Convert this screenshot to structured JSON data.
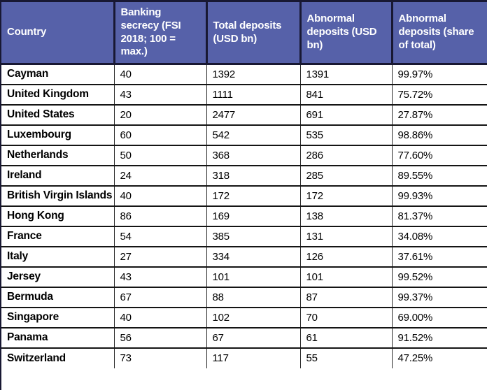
{
  "page": {
    "description": "Offshore banking deposits data table",
    "colors": {
      "header_bg": "#5661a9",
      "header_text": "#ffffff",
      "body_bg": "#ffffff",
      "body_text": "#000000",
      "grid_border": "#181833"
    }
  },
  "chart_data": {
    "type": "table",
    "column_keys": [
      "country",
      "banking-secrecy",
      "total-deposits",
      "abnormal-deposits",
      "abnormal-share"
    ],
    "columns": [
      "Country",
      "Banking secrecy (FSI 2018; 100 = max.)",
      "Total deposits (USD bn)",
      "Abnormal deposits (USD bn)",
      "Abnormal deposits (share of total)"
    ],
    "rows": [
      [
        "Cayman",
        40,
        1392,
        1391,
        "99.97%"
      ],
      [
        "United Kingdom",
        43,
        1111,
        841,
        "75.72%"
      ],
      [
        "United States",
        20,
        2477,
        691,
        "27.87%"
      ],
      [
        "Luxembourg",
        60,
        542,
        535,
        "98.86%"
      ],
      [
        "Netherlands",
        50,
        368,
        286,
        "77.60%"
      ],
      [
        "Ireland",
        24,
        318,
        285,
        "89.55%"
      ],
      [
        "British Virgin Islands",
        40,
        172,
        172,
        "99.93%"
      ],
      [
        "Hong Kong",
        86,
        169,
        138,
        "81.37%"
      ],
      [
        "France",
        54,
        385,
        131,
        "34.08%"
      ],
      [
        "Italy",
        27,
        334,
        126,
        "37.61%"
      ],
      [
        "Jersey",
        43,
        101,
        101,
        "99.52%"
      ],
      [
        "Bermuda",
        67,
        88,
        87,
        "99.37%"
      ],
      [
        "Singapore",
        40,
        102,
        70,
        "69.00%"
      ],
      [
        "Panama",
        56,
        67,
        61,
        "91.52%"
      ],
      [
        "Switzerland",
        73,
        117,
        55,
        "47.25%"
      ]
    ]
  }
}
